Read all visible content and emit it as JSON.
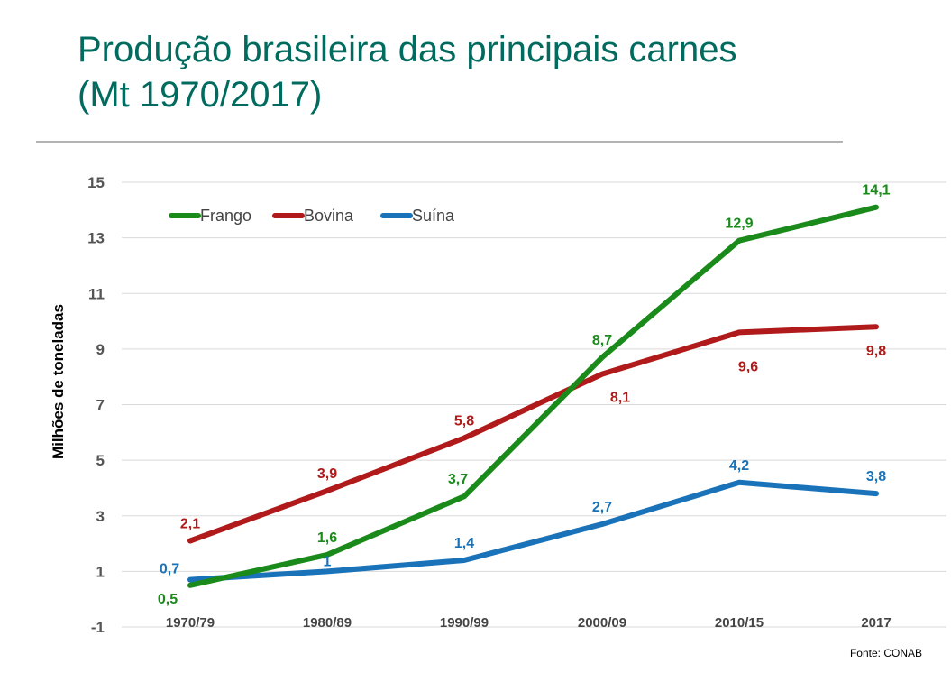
{
  "title_line1": "Produção brasileira das principais carnes",
  "title_line2": "(Mt 1970/2017)",
  "source": "Fonte: CONAB",
  "chart_data": {
    "type": "line",
    "title": "Produção brasileira das principais carnes (Mt 1970/2017)",
    "xlabel": "",
    "ylabel": "Milhões de toneladas",
    "ylim": [
      -1,
      15
    ],
    "yticks": [
      "-1",
      "1",
      "3",
      "5",
      "7",
      "9",
      "11",
      "13",
      "15"
    ],
    "categories": [
      "1970/79",
      "1980/89",
      "1990/99",
      "2000/09",
      "2010/15",
      "2017"
    ],
    "grid": true,
    "legend_position": "top-left",
    "series": [
      {
        "name": "Frango",
        "color": "#1a8a1a",
        "values": [
          0.5,
          1.6,
          3.7,
          8.7,
          12.9,
          14.1
        ],
        "labels": [
          "0,5",
          "1,6",
          "3,7",
          "8,7",
          "12,9",
          "14,1"
        ]
      },
      {
        "name": "Bovina",
        "color": "#b01a1a",
        "values": [
          2.1,
          3.9,
          5.8,
          8.1,
          9.6,
          9.8
        ],
        "labels": [
          "2,1",
          "3,9",
          "5,8",
          "8,1",
          "9,6",
          "9,8"
        ]
      },
      {
        "name": "Suína",
        "color": "#1a72b8",
        "values": [
          0.7,
          1.0,
          1.4,
          2.7,
          4.2,
          3.8
        ],
        "labels": [
          "0,7",
          "1",
          "1,4",
          "2,7",
          "4,2",
          "3,8"
        ]
      }
    ]
  }
}
